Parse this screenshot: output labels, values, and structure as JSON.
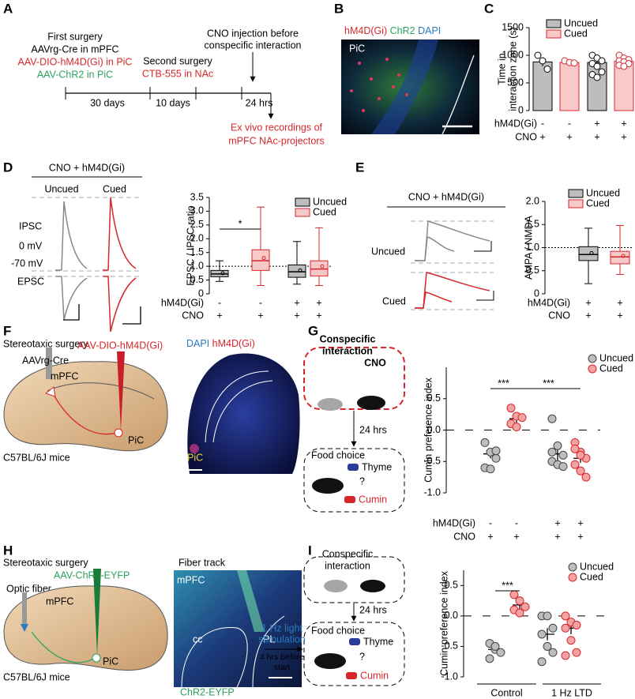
{
  "figure": {
    "panel_labels": [
      "A",
      "B",
      "C",
      "D",
      "E",
      "F",
      "G",
      "H",
      "I"
    ],
    "a": {
      "first_surgery": "First surgery",
      "aavrg": "AAVrg-Cre in mPFC",
      "dio": "AAV-DIO-hM4D(Gi) in PiC",
      "chr2": "AAV-ChR2 in PiC",
      "second_surgery": "Second surgery",
      "ctb": "CTB-555 in NAc",
      "cno1": "CNO injection before",
      "cno2": "conspecific interaction",
      "d30": "30 days",
      "d10": "10 days",
      "h24": "24 hrs",
      "exvivo1": "Ex vivo recordings of",
      "exvivo2": "mPFC NAc-projectors"
    },
    "b": {
      "hm4d": "hM4D(Gi)",
      "chr2": "ChR2",
      "dapi": "DAPI",
      "pic": "PiC"
    },
    "d": {
      "title": "CNO + hM4D(Gi)",
      "uncued": "Uncued",
      "cued": "Cued",
      "ipsc": "IPSC",
      "zero": "0 mV",
      "minus70": "-70 mV",
      "epsc": "EPSC"
    },
    "e": {
      "title": "CNO + hM4D(Gi)",
      "uncued": "Uncued",
      "cued": "Cued"
    },
    "f": {
      "surgery": "Stereotaxic surgery",
      "aavrg": "AAVrg-Cre",
      "dio": "AAV-DIO-hM4D(Gi)",
      "mpfc": "mPFC",
      "pic": "PiC",
      "mice": "C57BL/6J mice",
      "dapi": "DAPI",
      "hm4d": "hM4D(Gi)",
      "pic_image": "PiC"
    },
    "g": {
      "conspecific": "Conspecific",
      "interaction": "interaction",
      "cno": "CNO",
      "h24": "24 hrs",
      "food": "Food choice",
      "thyme": "Thyme",
      "q": "?",
      "cumin": "Cumin"
    },
    "h": {
      "surgery": "Stereotaxic surgery",
      "chr2": "AAV-ChR2-EYFP",
      "fiber": "Optic fiber",
      "mpfc": "mPFC",
      "pic": "PiC",
      "mice": "C57BL/6J mice",
      "track": "Fiber track",
      "mpfc_image": "mPFC",
      "cc": "cc",
      "pl": "PL",
      "eyfp": "ChR2-EYFP"
    },
    "i": {
      "conspecific": "Conspecific",
      "interaction": "interaction",
      "h24": "24 hrs",
      "light1": "1 Hz light",
      "light2": "stimulation",
      "before1": "4 hrs before",
      "before2": "start",
      "food": "Food choice",
      "thyme": "Thyme",
      "q": "?",
      "cumin": "Cumin"
    }
  },
  "chart_data": [
    {
      "type": "bar",
      "y_label": [
        "Time in",
        "interaction zone (s)"
      ],
      "categories": [
        null,
        null,
        null,
        null
      ],
      "ylim": [
        0,
        1500
      ],
      "yticks": [
        0,
        500,
        1000,
        1500
      ],
      "series": [
        {
          "name": "Uncued",
          "color": "#bdbdbd",
          "edge_color": "#000000",
          "values": [
            880,
            null,
            870,
            null
          ],
          "errors": [
            80,
            null,
            60,
            null
          ],
          "points": [
            [
              1000,
              900,
              750
            ],
            null,
            [
              1000,
              950,
              900,
              850,
              800,
              700,
              650,
              600
            ],
            null
          ]
        },
        {
          "name": "Cued",
          "color": "#f9c9c9",
          "edge_color": "#d7262b",
          "values": [
            null,
            870,
            null,
            890
          ],
          "errors": [
            null,
            30,
            null,
            30
          ],
          "points": [
            null,
            [
              900,
              870,
              860
            ],
            null,
            [
              1000,
              950,
              920,
              900,
              880,
              850,
              820,
              800
            ]
          ]
        }
      ],
      "row_labels": [
        "hM4D(Gi)",
        "CNO"
      ],
      "rows": [
        [
          "-",
          "-",
          "+",
          "+"
        ],
        [
          "+",
          "+",
          "+",
          "+"
        ]
      ]
    },
    {
      "type": "box",
      "y_label": [
        "EPSC / IPSC ratio"
      ],
      "categories": [
        null,
        null,
        null,
        null
      ],
      "ylim": [
        0,
        3.5
      ],
      "yticks": [
        0,
        0.5,
        {
          "value": 1,
          "label": "1.0"
        },
        1.5,
        {
          "value": 2,
          "label": "2.0"
        },
        2.5,
        {
          "value": 3,
          "label": "3.0"
        },
        3.5
      ],
      "reference_line": 1,
      "series": [
        {
          "name": "Uncued",
          "color": "#bdbdbd",
          "edge_color": "#000000",
          "boxes": [
            {
              "low": 0.45,
              "q1": 0.62,
              "median": 0.72,
              "q3": 0.85,
              "high": 1.2,
              "mean": 0.75
            },
            null,
            {
              "low": 0.35,
              "q1": 0.6,
              "median": 0.8,
              "q3": 1.05,
              "high": 1.9,
              "mean": 0.85
            },
            null
          ]
        },
        {
          "name": "Cued",
          "color": "#f9c9c9",
          "edge_color": "#d7262b",
          "boxes": [
            null,
            {
              "low": 0.3,
              "q1": 0.85,
              "median": 1.2,
              "q3": 1.6,
              "high": 3.15,
              "mean": 1.3
            },
            null,
            {
              "low": 0.3,
              "q1": 0.65,
              "median": 0.9,
              "q3": 1.2,
              "high": 2.4,
              "mean": 1.0
            }
          ]
        }
      ],
      "annotations": [
        "*"
      ],
      "row_labels": [
        "hM4D(Gi)",
        "CNO"
      ],
      "rows": [
        [
          "-",
          "-",
          "+",
          "+"
        ],
        [
          "+",
          "+",
          "+",
          "+"
        ]
      ]
    },
    {
      "type": "box",
      "y_label": [
        "AMPA / NMDA"
      ],
      "categories": [
        null,
        null
      ],
      "ylim": [
        0,
        2
      ],
      "yticks": [
        0,
        0.5,
        {
          "value": 1,
          "label": "1.0"
        },
        1.5,
        {
          "value": 2,
          "label": "2.0"
        }
      ],
      "reference_line": 1,
      "series": [
        {
          "name": "Uncued",
          "color": "#bdbdbd",
          "edge_color": "#000000",
          "boxes": [
            {
              "low": 0.22,
              "q1": 0.72,
              "median": 0.85,
              "q3": 1.02,
              "high": 1.42,
              "mean": 0.88
            },
            null
          ]
        },
        {
          "name": "Cued",
          "color": "#f9c9c9",
          "edge_color": "#d7262b",
          "boxes": [
            null,
            {
              "low": 0.42,
              "q1": 0.65,
              "median": 0.8,
              "q3": 0.92,
              "high": 1.48,
              "mean": 0.82
            }
          ]
        }
      ],
      "row_labels": [
        "hM4D(Gi)",
        "CNO"
      ],
      "rows": [
        [
          "+",
          "+"
        ],
        [
          "+",
          "+"
        ]
      ]
    },
    {
      "type": "strip",
      "y_label": [
        "Cumin preference index"
      ],
      "categories": [
        null,
        null,
        null,
        null
      ],
      "ylim": [
        -1.0,
        1.0
      ],
      "yticks": [
        {
          "value": -1,
          "label": "-1.0"
        },
        -0.5,
        {
          "value": 0,
          "label": "0.0"
        },
        0.5
      ],
      "reference_line": 0,
      "series": [
        {
          "name": "Uncued",
          "color": "#bdbdbd",
          "edge_color": "#444444",
          "means": [
            -0.38,
            null,
            -0.38,
            null
          ],
          "errors": [
            0.07,
            null,
            0.1,
            null
          ],
          "points": [
            [
              -0.2,
              -0.35,
              -0.45,
              -0.6,
              -0.62,
              -0.33
            ],
            null,
            [
              0.18,
              -0.25,
              -0.4,
              -0.5,
              -0.55,
              -0.58,
              -0.35
            ],
            null
          ]
        },
        {
          "name": "Cued",
          "color": "#f4a3a3",
          "edge_color": "#d7262b",
          "means": [
            null,
            0.18,
            null,
            -0.45
          ],
          "errors": [
            null,
            0.06,
            null,
            0.07
          ],
          "points": [
            null,
            [
              0.35,
              0.22,
              0.2,
              0.1,
              0.05
            ],
            null,
            [
              -0.2,
              -0.35,
              -0.45,
              -0.55,
              -0.65,
              -0.75,
              -0.3,
              -0.4
            ]
          ]
        }
      ],
      "annotations": [
        "***",
        "***"
      ],
      "row_labels": [
        "hM4D(Gi)",
        "CNO"
      ],
      "rows": [
        [
          "-",
          "-",
          "+",
          "+"
        ],
        [
          "+",
          "+",
          "+",
          "+"
        ]
      ]
    },
    {
      "type": "strip",
      "y_label": [
        "Cumin preference index"
      ],
      "categories": [
        null,
        null,
        null,
        null
      ],
      "ylim": [
        -1.0,
        0.75
      ],
      "yticks": [
        {
          "value": -1,
          "label": "-1.0"
        },
        -0.5,
        {
          "value": 0,
          "label": "0.0"
        },
        0.5
      ],
      "reference_line": 0,
      "series": [
        {
          "name": "Uncued",
          "color": "#bdbdbd",
          "edge_color": "#444444",
          "means": [
            -0.55,
            null,
            -0.3,
            null
          ],
          "errors": [
            0.05,
            null,
            0.1,
            null
          ],
          "points": [
            [
              -0.45,
              -0.55,
              -0.6,
              -0.7,
              -0.5
            ],
            null,
            [
              0,
              0,
              -0.2,
              -0.3,
              -0.5,
              -0.6,
              -0.75
            ],
            null
          ]
        },
        {
          "name": "Cued",
          "color": "#f4a3a3",
          "edge_color": "#d7262b",
          "means": [
            null,
            0.18,
            null,
            -0.2
          ],
          "errors": [
            null,
            0.08,
            null,
            0.1
          ],
          "points": [
            null,
            [
              0.35,
              0.25,
              0.15,
              0.1,
              0.05
            ],
            null,
            [
              0,
              -0.1,
              -0.15,
              -0.2,
              -0.4,
              -0.6,
              -0.65
            ]
          ]
        }
      ],
      "annotations": [
        "***"
      ],
      "groups": [
        {
          "label": "Control",
          "color": "#000000"
        },
        {
          "label": "1 Hz LTD",
          "color": "#2b7bbf"
        }
      ]
    }
  ]
}
